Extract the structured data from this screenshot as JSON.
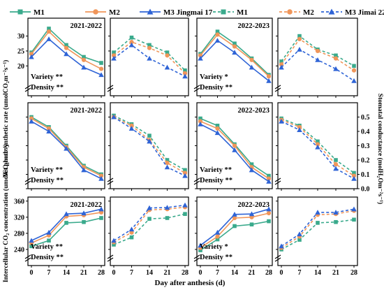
{
  "colors": {
    "M1": "#3aaa8c",
    "M2": "#f0965a",
    "M3": "#2f64d6"
  },
  "legend": [
    {
      "label": "M1",
      "color": "#3aaa8c",
      "marker": "square",
      "dash": false
    },
    {
      "label": "M2",
      "color": "#f0965a",
      "marker": "circle",
      "dash": false
    },
    {
      "label": "M3 Jingmai 17",
      "color": "#2f64d6",
      "marker": "triangle",
      "dash": false
    },
    {
      "label": "M1",
      "color": "#3aaa8c",
      "marker": "square",
      "dash": true
    },
    {
      "label": "M2",
      "color": "#f0965a",
      "marker": "circle",
      "dash": true
    },
    {
      "label": "M3 Jimai 22",
      "color": "#2f64d6",
      "marker": "triangle",
      "dash": true
    }
  ],
  "axis_labels": {
    "x": "Day after anthesis (d)",
    "y_row1": "Net photosynthetic rate (umolCO₂m⁻²s⁻¹)",
    "y_row2": "Intercellular CO₂ concentration (umolCO₂mol⁻¹)",
    "y_right": "Stomatal conductance (molH₂Om⁻²s⁻¹)"
  },
  "chart_data": {
    "type": "line",
    "x": [
      0,
      7,
      14,
      21,
      28
    ],
    "xticks": [
      "0",
      "7",
      "14",
      "21",
      "28"
    ],
    "rows": [
      {
        "name": "Pn",
        "ylim": [
          10,
          36
        ],
        "yticks": [
          "20",
          "25",
          "30"
        ],
        "show_yticks": true
      },
      {
        "name": "Gs",
        "ylim": [
          0,
          0.6
        ],
        "yticks": [
          "0.0",
          "0.1",
          "0.2",
          "0.3",
          "0.4",
          "0.5"
        ],
        "show_yticks": false,
        "right_ticks": true
      },
      {
        "name": "Ci",
        "ylim": [
          200,
          370
        ],
        "yticks": [
          "240",
          "280",
          "320",
          "360"
        ],
        "show_yticks": true
      }
    ],
    "panels": [
      {
        "row": 0,
        "col": 0,
        "label": "2021-2022",
        "variety": "Variety **",
        "density": "Density **",
        "dashed": false,
        "series": [
          {
            "name": "M1",
            "values": [
              24.5,
              32.5,
              27,
              23,
              21
            ]
          },
          {
            "name": "M2",
            "values": [
              24,
              31.5,
              26,
              22,
              19
            ]
          },
          {
            "name": "M3 Jingmai 17",
            "values": [
              23,
              29,
              24,
              19.5,
              17
            ]
          }
        ]
      },
      {
        "row": 0,
        "col": 1,
        "label": "",
        "variety": "",
        "density": "",
        "dashed": true,
        "series": [
          {
            "name": "M1",
            "values": [
              24.5,
              29.5,
              27,
              24.5,
              18.5
            ]
          },
          {
            "name": "M2",
            "values": [
              23.5,
              28,
              26,
              23.5,
              17.5
            ]
          },
          {
            "name": "M3 Jimai 22",
            "values": [
              22.5,
              27,
              22.5,
              19.5,
              16.5
            ]
          }
        ]
      },
      {
        "row": 0,
        "col": 2,
        "label": "2022-2023",
        "variety": "Variety *",
        "density": "Density **",
        "dashed": false,
        "series": [
          {
            "name": "M1",
            "values": [
              24,
              31.5,
              27.5,
              22.5,
              17
            ]
          },
          {
            "name": "M2",
            "values": [
              23.5,
              30.5,
              26.5,
              22,
              16.5
            ]
          },
          {
            "name": "M3 Jingmai 17",
            "values": [
              22.5,
              28.5,
              24.5,
              19.5,
              15
            ]
          }
        ]
      },
      {
        "row": 0,
        "col": 3,
        "label": "",
        "variety": "",
        "density": "",
        "dashed": true,
        "series": [
          {
            "name": "M1",
            "values": [
              21.5,
              30,
              25.5,
              23.5,
              20
            ]
          },
          {
            "name": "M2",
            "values": [
              20.5,
              29,
              25,
              22.5,
              18.5
            ]
          },
          {
            "name": "M3 Jimai 22",
            "values": [
              19.5,
              25.5,
              22,
              19,
              15
            ]
          }
        ]
      },
      {
        "row": 1,
        "col": 0,
        "label": "2021-2022",
        "variety": "Variety **",
        "density": "Density **",
        "dashed": false,
        "series": [
          {
            "name": "M1",
            "values": [
              0.5,
              0.43,
              0.3,
              0.16,
              0.1
            ]
          },
          {
            "name": "M2",
            "values": [
              0.49,
              0.42,
              0.29,
              0.15,
              0.09
            ]
          },
          {
            "name": "M3 Jingmai 17",
            "values": [
              0.47,
              0.4,
              0.28,
              0.13,
              0.07
            ]
          }
        ]
      },
      {
        "row": 1,
        "col": 1,
        "label": "",
        "variety": "",
        "density": "",
        "dashed": true,
        "series": [
          {
            "name": "M1",
            "values": [
              0.51,
              0.45,
              0.37,
              0.2,
              0.13
            ]
          },
          {
            "name": "M2",
            "values": [
              0.5,
              0.44,
              0.34,
              0.18,
              0.11
            ]
          },
          {
            "name": "M3 Jimai 22",
            "values": [
              0.5,
              0.42,
              0.33,
              0.15,
              0.09
            ]
          }
        ]
      },
      {
        "row": 1,
        "col": 2,
        "label": "2022-2023",
        "variety": "Variety **",
        "density": "Density **",
        "dashed": false,
        "series": [
          {
            "name": "M1",
            "values": [
              0.49,
              0.44,
              0.31,
              0.17,
              0.09
            ]
          },
          {
            "name": "M2",
            "values": [
              0.47,
              0.42,
              0.3,
              0.15,
              0.07
            ]
          },
          {
            "name": "M3 Jingmai 17",
            "values": [
              0.45,
              0.39,
              0.27,
              0.13,
              0.05
            ]
          }
        ]
      },
      {
        "row": 1,
        "col": 3,
        "label": "",
        "variety": "",
        "density": "",
        "dashed": true,
        "series": [
          {
            "name": "M1",
            "values": [
              0.49,
              0.44,
              0.33,
              0.2,
              0.11
            ]
          },
          {
            "name": "M2",
            "values": [
              0.48,
              0.43,
              0.31,
              0.17,
              0.09
            ]
          },
          {
            "name": "M3 Jimai 22",
            "values": [
              0.47,
              0.41,
              0.29,
              0.14,
              0.07
            ]
          }
        ]
      },
      {
        "row": 2,
        "col": 0,
        "label": "2021-2022",
        "variety": "Variety **",
        "density": "Density **",
        "dashed": false,
        "series": [
          {
            "name": "M1",
            "values": [
              248,
              262,
              306,
              308,
              318
            ]
          },
          {
            "name": "M2",
            "values": [
              256,
              275,
              322,
              325,
              332
            ]
          },
          {
            "name": "M3 Jingmai 17",
            "values": [
              262,
              282,
              328,
              330,
              340
            ]
          }
        ]
      },
      {
        "row": 2,
        "col": 1,
        "label": "",
        "variety": "",
        "density": "",
        "dashed": true,
        "series": [
          {
            "name": "M1",
            "values": [
              252,
              270,
              316,
              318,
              328
            ]
          },
          {
            "name": "M2",
            "values": [
              258,
              282,
              338,
              340,
              345
            ]
          },
          {
            "name": "M3 Jimai 22",
            "values": [
              262,
              290,
              343,
              344,
              350
            ]
          }
        ]
      },
      {
        "row": 2,
        "col": 2,
        "label": "2022-2023",
        "variety": "Variety *",
        "density": "Density **",
        "dashed": false,
        "series": [
          {
            "name": "M1",
            "values": [
              238,
              265,
              298,
              302,
              310
            ]
          },
          {
            "name": "M2",
            "values": [
              244,
              272,
              318,
              320,
              330
            ]
          },
          {
            "name": "M3 Jingmai 17",
            "values": [
              250,
              282,
              327,
              328,
              340
            ]
          }
        ]
      },
      {
        "row": 2,
        "col": 3,
        "label": "",
        "variety": "",
        "density": "",
        "dashed": true,
        "series": [
          {
            "name": "M1",
            "values": [
              240,
              264,
              306,
              308,
              314
            ]
          },
          {
            "name": "M2",
            "values": [
              244,
              272,
              326,
              328,
              336
            ]
          },
          {
            "name": "M3 Jimai 22",
            "values": [
              248,
              278,
              332,
              332,
              340
            ]
          }
        ]
      }
    ]
  }
}
